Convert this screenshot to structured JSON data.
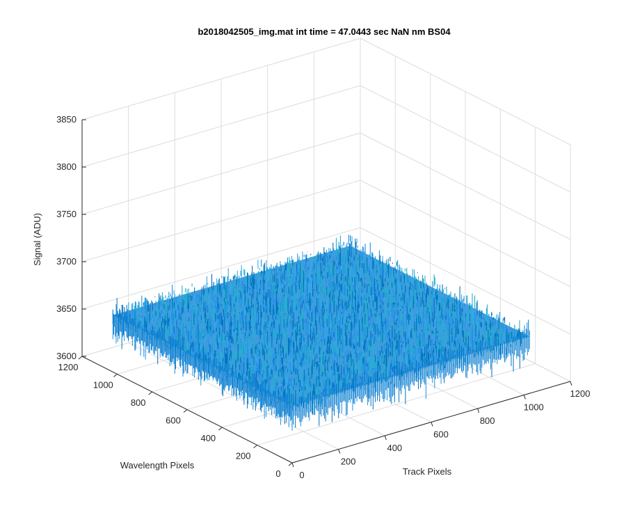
{
  "chart_data": {
    "type": "surface",
    "title": "b2018042505_img.mat int time = 47.0443 sec   NaN nm BS04",
    "xlabel": "Track Pixels",
    "ylabel": "Wavelength Pixels",
    "zlabel": "Signal (ADU)",
    "xlim": [
      0,
      1200
    ],
    "ylim": [
      0,
      1200
    ],
    "zlim": [
      3600,
      3850
    ],
    "x_ticks": [
      "0",
      "200",
      "400",
      "600",
      "800",
      "1000",
      "1200"
    ],
    "y_ticks": [
      "0",
      "200",
      "400",
      "600",
      "800",
      "1000",
      "1200"
    ],
    "z_ticks": [
      "3600",
      "3650",
      "3700",
      "3750",
      "3800",
      "3850"
    ],
    "grid": true,
    "surface": {
      "x_range": [
        0,
        1024
      ],
      "y_range": [
        0,
        1024
      ],
      "mean_signal": 3660,
      "noise_range": [
        3620,
        3710
      ],
      "colors": [
        "#0072BD",
        "#1E90E6",
        "#35A8E8",
        "#22B0C8"
      ]
    }
  }
}
